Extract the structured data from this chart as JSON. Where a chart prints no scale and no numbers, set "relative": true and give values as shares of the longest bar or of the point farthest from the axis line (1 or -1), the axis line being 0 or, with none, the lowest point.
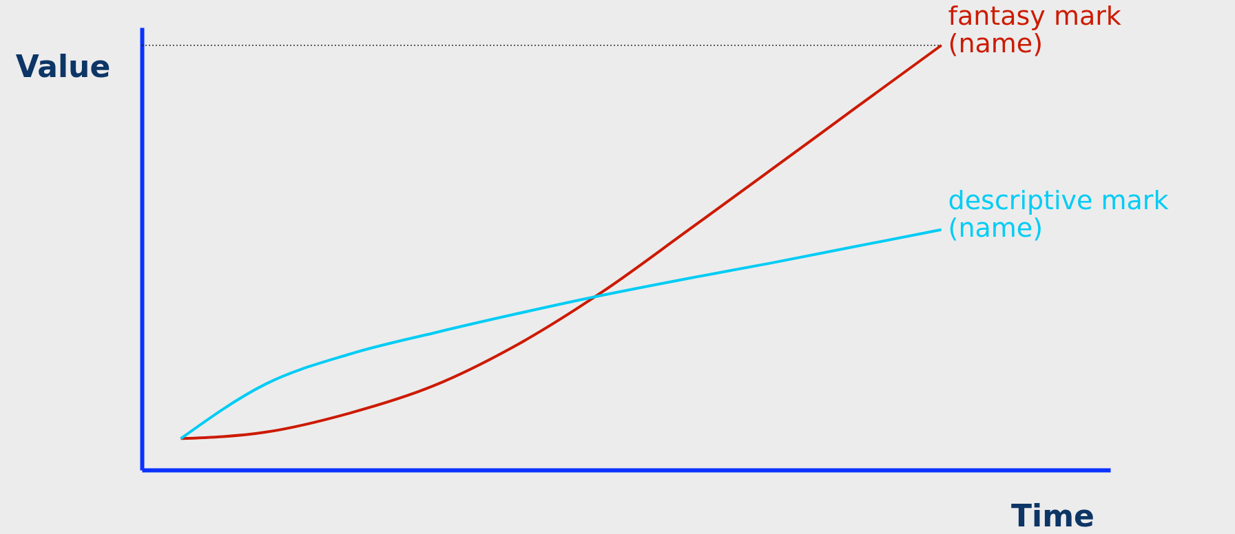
{
  "chart_data": {
    "type": "line",
    "xlabel": "Time",
    "ylabel": "Value",
    "relative": true,
    "categories": [
      null,
      null,
      null,
      null,
      null,
      null,
      null,
      null,
      null,
      null
    ],
    "series": [
      {
        "name": "fantasy mark (name)",
        "color": "#cc1a00",
        "values": [
          0.074,
          0.089,
          0.134,
          0.199,
          0.297,
          0.421,
          0.564,
          0.709,
          0.855,
          1
        ]
      },
      {
        "name": "descriptive mark (name)",
        "color": "#00ccf5",
        "values": [
          0.074,
          0.202,
          0.273,
          0.323,
          0.369,
          0.412,
          0.451,
          0.488,
          0.527,
          0.566
        ]
      }
    ],
    "ref_lines": [
      {
        "axis": "y",
        "value": 1,
        "color": "#000000",
        "line_style": "dotted"
      }
    ],
    "legend": false,
    "grid": false,
    "marker": "none",
    "line_style": "solid",
    "tick_labels": false
  }
}
